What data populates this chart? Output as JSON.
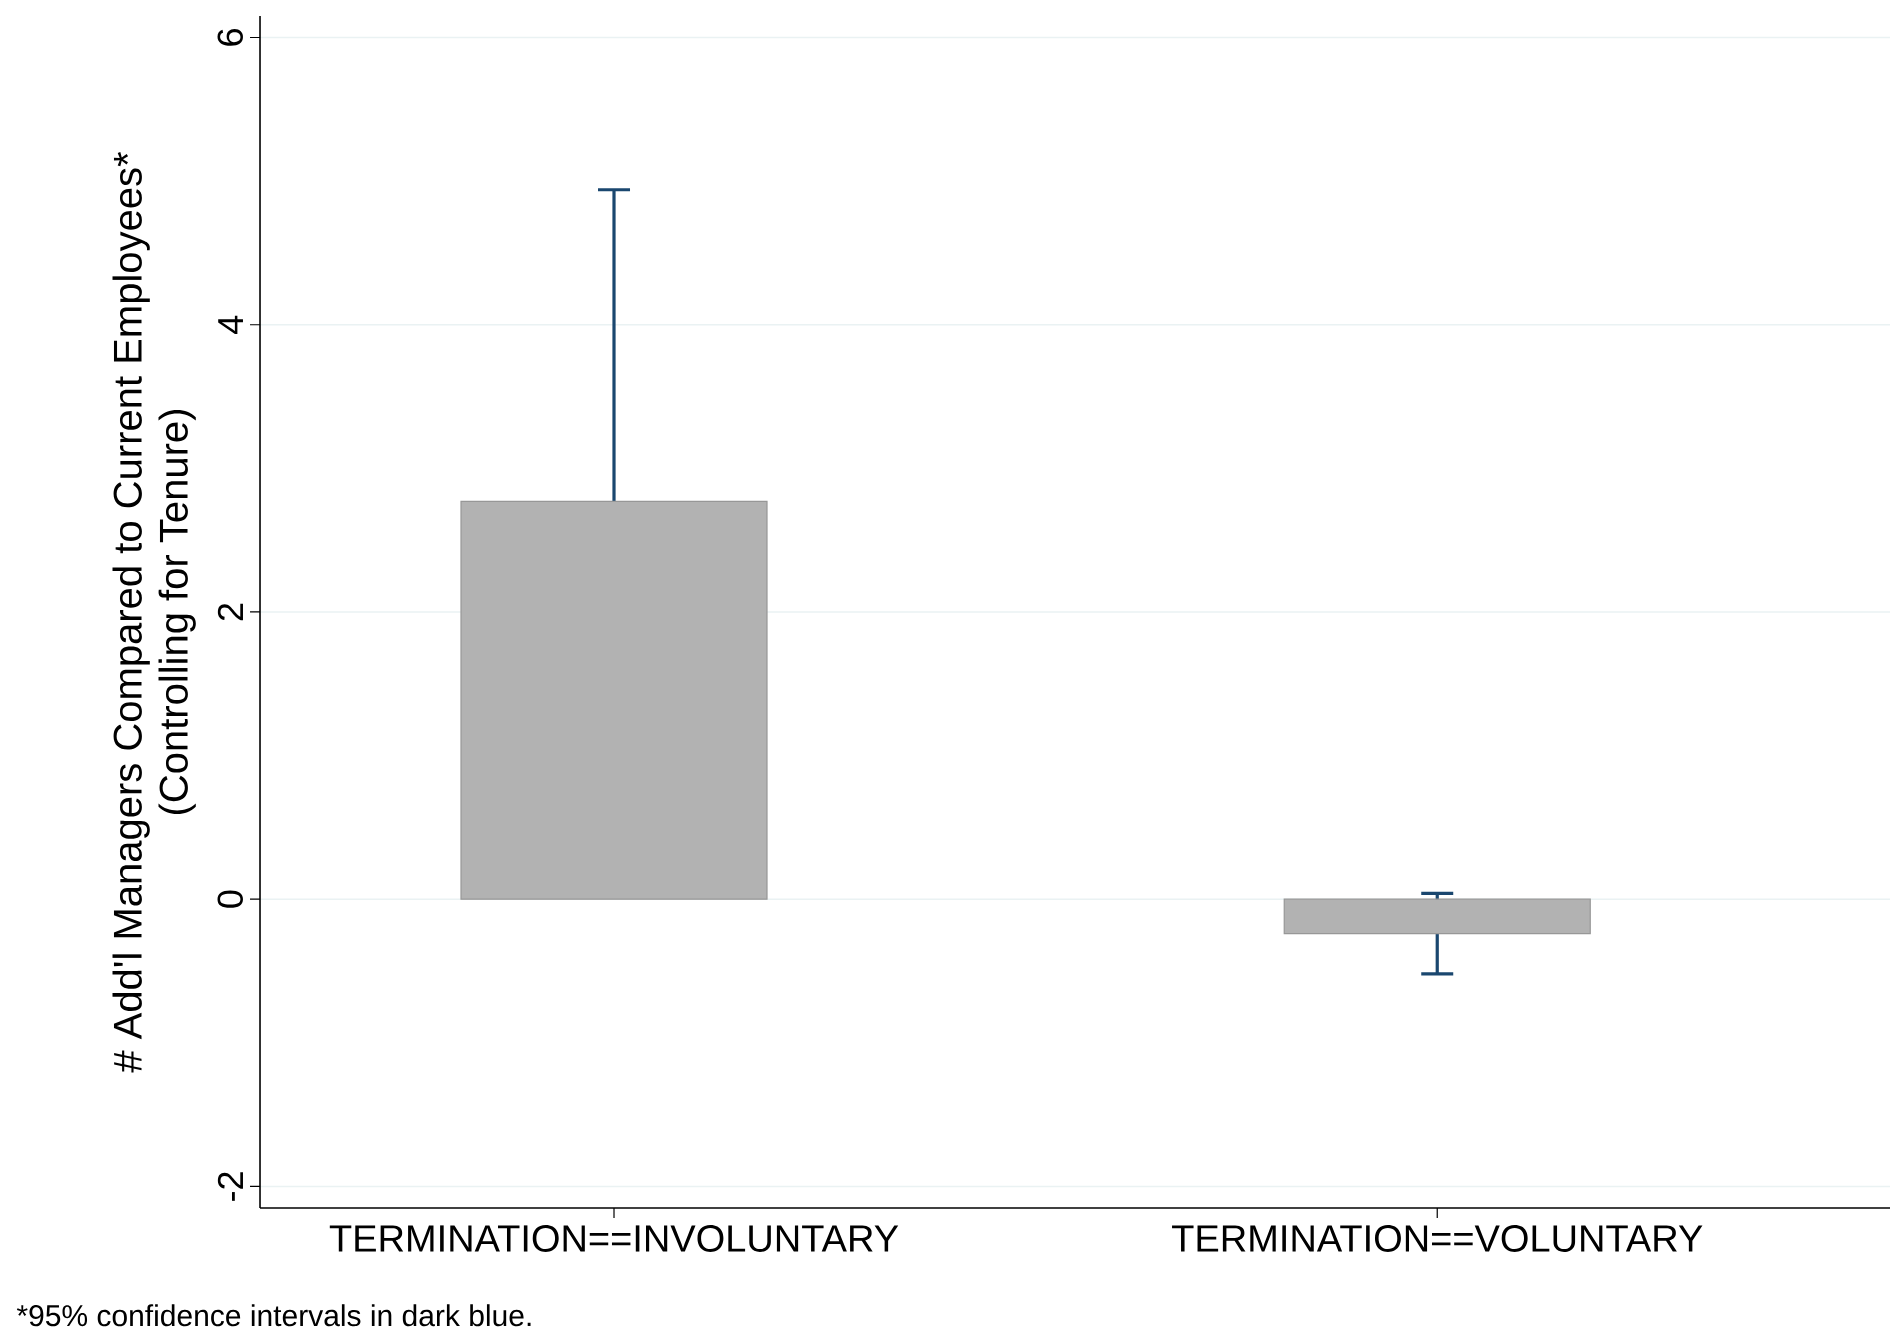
{
  "chart_data": {
    "type": "bar",
    "ylabel": "# Add'l Managers Compared to Current Employees* (Controlling for Tenure)",
    "categories": [
      "TERMINATION==INVOLUNTARY",
      "TERMINATION==VOLUNTARY"
    ],
    "values": [
      2.77,
      -0.24
    ],
    "errors": [
      2.17,
      0.28
    ],
    "color": "#b2b2b2",
    "ylim": [
      -2.15,
      6.15
    ],
    "yticks": [
      -2,
      0,
      2,
      4,
      6
    ],
    "grid": "y",
    "annotations": [
      "*95% confidence intervals in dark blue."
    ]
  }
}
